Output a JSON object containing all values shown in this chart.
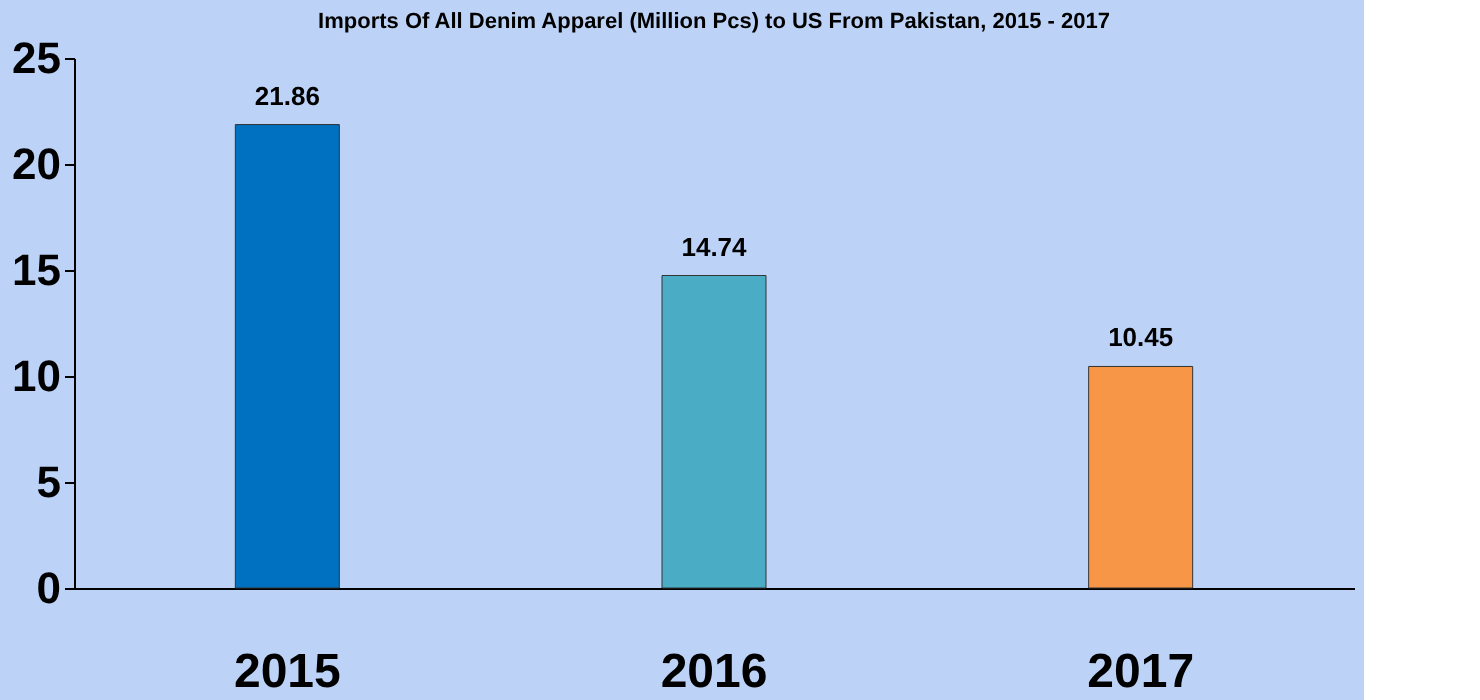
{
  "chart_data": {
    "type": "bar",
    "title": "Imports Of All Denim Apparel (Million Pcs) to US From Pakistan, 2015 - 2017",
    "categories": [
      "2015",
      "2016",
      "2017"
    ],
    "values": [
      21.86,
      14.74,
      10.45
    ],
    "colors": [
      "#0070c0",
      "#4bacc6",
      "#f79646"
    ],
    "ylim": [
      0,
      25
    ],
    "yticks": [
      0,
      5,
      10,
      15,
      20,
      25
    ],
    "grid": false,
    "data_labels": true
  }
}
